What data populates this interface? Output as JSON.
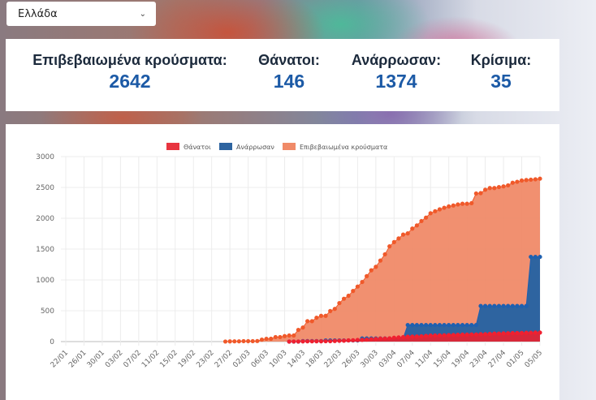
{
  "country_select": {
    "value": "Ελλάδα",
    "icon": "chevron-down-icon"
  },
  "stats": [
    {
      "label": "Επιβεβαιωμένα κρούσματα:",
      "value": "2642"
    },
    {
      "label": "Θάνατοι:",
      "value": "146"
    },
    {
      "label": "Ανάρρωσαν:",
      "value": "1374"
    },
    {
      "label": "Κρίσιμα:",
      "value": "35"
    }
  ],
  "colors": {
    "deaths": "#e8343f",
    "recovered": "#2e64a0",
    "confirmed": "#f08a68",
    "confirmed_points": "#f0592a",
    "stat_value": "#1c5aa6"
  },
  "chart_data": {
    "type": "area",
    "legend": [
      "Θάνατοι",
      "Ανάρρωσαν",
      "Επιβεβαιωμένα κρούσματα"
    ],
    "legend_position": "top",
    "grid": true,
    "ylim": [
      0,
      3000
    ],
    "yticks": [
      0,
      500,
      1000,
      1500,
      2000,
      2500,
      3000
    ],
    "x_start": "22/01",
    "x_end": "05/05",
    "xtick_labels": [
      "22/01",
      "26/01",
      "30/01",
      "03/02",
      "07/02",
      "11/02",
      "15/02",
      "19/02",
      "23/02",
      "27/02",
      "02/03",
      "06/03",
      "10/03",
      "14/03",
      "18/03",
      "22/03",
      "26/03",
      "30/03",
      "03/04",
      "07/04",
      "11/04",
      "15/04",
      "19/04",
      "23/04",
      "27/04",
      "01/05",
      "05/05"
    ],
    "series": [
      {
        "name": "Επιβεβαιωμένα κρούσματα",
        "start": "26/02",
        "values": [
          1,
          3,
          4,
          4,
          7,
          7,
          7,
          9,
          31,
          45,
          46,
          73,
          73,
          89,
          99,
          99,
          190,
          228,
          331,
          331,
          387,
          418,
          418,
          495,
          530,
          624,
          695,
          743,
          821,
          892,
          966,
          1061,
          1156,
          1212,
          1314,
          1415,
          1544,
          1613,
          1673,
          1735,
          1755,
          1832,
          1884,
          1955,
          2011,
          2081,
          2114,
          2145,
          2170,
          2192,
          2207,
          2224,
          2235,
          2235,
          2245,
          2401,
          2408,
          2463,
          2490,
          2490,
          2506,
          2517,
          2534,
          2576,
          2591,
          2612,
          2620,
          2626,
          2632,
          2642
        ]
      },
      {
        "name": "Ανάρρωσαν",
        "start": "11/03",
        "values": [
          0,
          0,
          0,
          8,
          8,
          8,
          8,
          8,
          19,
          19,
          19,
          19,
          19,
          19,
          19,
          19,
          52,
          52,
          52,
          52,
          52,
          52,
          52,
          52,
          52,
          52,
          269,
          269,
          269,
          269,
          269,
          269,
          269,
          269,
          269,
          269,
          269,
          269,
          269,
          269,
          269,
          269,
          577,
          577,
          577,
          577,
          577,
          577,
          577,
          577,
          577,
          577,
          577,
          1374,
          1374,
          1374
        ]
      },
      {
        "name": "Θάνατοι",
        "start": "11/03",
        "values": [
          0,
          1,
          1,
          3,
          4,
          4,
          5,
          5,
          6,
          6,
          10,
          13,
          15,
          20,
          22,
          26,
          28,
          32,
          38,
          43,
          49,
          50,
          53,
          63,
          68,
          73,
          79,
          81,
          83,
          86,
          93,
          98,
          99,
          101,
          102,
          105,
          108,
          110,
          113,
          113,
          116,
          116,
          121,
          121,
          125,
          130,
          130,
          134,
          136,
          138,
          139,
          140,
          143,
          144,
          146,
          146
        ]
      }
    ]
  }
}
